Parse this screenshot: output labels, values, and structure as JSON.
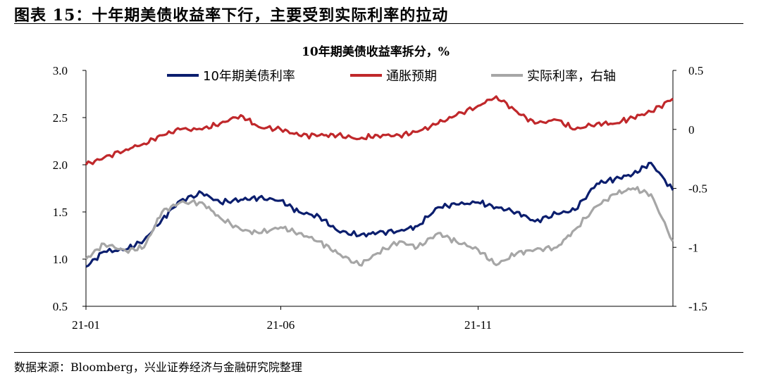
{
  "figure_title": "图表 15：十年期美债收益率下行，主要受到实际利率的拉动",
  "source": "数据来源：Bloomberg，兴业证券经济与金融研究院整理",
  "chart_data": {
    "type": "line",
    "title": "10年期美债收益率拆分，%",
    "x_ticks": [
      "21-01",
      "21-06",
      "21-11"
    ],
    "x_range": [
      "2021-01-01",
      "2022-04-01"
    ],
    "x_axis": {
      "tick_dates": [
        "2021-01-01",
        "2021-06-01",
        "2021-11-01"
      ]
    },
    "left_axis": {
      "ylim": [
        0.5,
        3.0
      ],
      "ticks": [
        "0.5",
        "1.0",
        "1.5",
        "2.0",
        "2.5",
        "3.0"
      ]
    },
    "right_axis": {
      "ylim": [
        -1.5,
        0.5
      ],
      "ticks": [
        "-1.5",
        "-1",
        "-0.5",
        "0",
        "0.5"
      ]
    },
    "grid": false,
    "legend_position": "top",
    "series": [
      {
        "name": "10年期美债利率",
        "axis": "left",
        "color": "#0b1e6e",
        "x": [
          "2021-01-01",
          "2021-01-15",
          "2021-02-01",
          "2021-02-15",
          "2021-03-01",
          "2021-03-15",
          "2021-04-01",
          "2021-04-15",
          "2021-05-01",
          "2021-05-15",
          "2021-06-01",
          "2021-06-15",
          "2021-07-01",
          "2021-07-15",
          "2021-08-01",
          "2021-08-15",
          "2021-09-01",
          "2021-09-15",
          "2021-10-01",
          "2021-10-15",
          "2021-11-01",
          "2021-11-15",
          "2021-12-01",
          "2021-12-15",
          "2022-01-01",
          "2022-01-15",
          "2022-02-01",
          "2022-02-15",
          "2022-03-01",
          "2022-03-15",
          "2022-04-01"
        ],
        "values": [
          0.92,
          1.08,
          1.1,
          1.2,
          1.42,
          1.62,
          1.7,
          1.6,
          1.63,
          1.65,
          1.62,
          1.5,
          1.45,
          1.3,
          1.25,
          1.28,
          1.3,
          1.35,
          1.55,
          1.58,
          1.6,
          1.55,
          1.5,
          1.4,
          1.48,
          1.52,
          1.8,
          1.85,
          1.9,
          2.02,
          1.73
        ]
      },
      {
        "name": "通胀预期",
        "axis": "right",
        "color": "#c0282b",
        "x": [
          "2021-01-01",
          "2021-01-15",
          "2021-02-01",
          "2021-02-15",
          "2021-03-01",
          "2021-03-15",
          "2021-04-01",
          "2021-04-15",
          "2021-05-01",
          "2021-05-15",
          "2021-06-01",
          "2021-06-15",
          "2021-07-01",
          "2021-07-15",
          "2021-08-01",
          "2021-08-15",
          "2021-09-01",
          "2021-09-15",
          "2021-10-01",
          "2021-10-15",
          "2021-11-01",
          "2021-11-15",
          "2021-12-01",
          "2021-12-15",
          "2022-01-01",
          "2022-01-15",
          "2022-02-01",
          "2022-02-15",
          "2022-03-01",
          "2022-03-15",
          "2022-04-01"
        ],
        "values": [
          -0.3,
          -0.24,
          -0.17,
          -0.12,
          -0.05,
          0.0,
          0.0,
          0.05,
          0.12,
          0.02,
          0.0,
          -0.05,
          -0.05,
          -0.05,
          -0.08,
          -0.05,
          -0.05,
          -0.02,
          0.05,
          0.12,
          0.2,
          0.28,
          0.15,
          0.05,
          0.08,
          0.0,
          0.05,
          0.05,
          0.1,
          0.15,
          0.26
        ]
      },
      {
        "name": "实际利率，右轴",
        "axis": "right",
        "color": "#a6a6a6",
        "x": [
          "2021-01-01",
          "2021-01-15",
          "2021-02-01",
          "2021-02-15",
          "2021-03-01",
          "2021-03-15",
          "2021-04-01",
          "2021-04-15",
          "2021-05-01",
          "2021-05-15",
          "2021-06-01",
          "2021-06-15",
          "2021-07-01",
          "2021-07-15",
          "2021-08-01",
          "2021-08-15",
          "2021-09-01",
          "2021-09-15",
          "2021-10-01",
          "2021-10-15",
          "2021-11-01",
          "2021-11-15",
          "2021-12-01",
          "2021-12-15",
          "2022-01-01",
          "2022-01-15",
          "2022-02-01",
          "2022-02-15",
          "2022-03-01",
          "2022-03-15",
          "2022-04-01"
        ],
        "values": [
          -1.1,
          -0.97,
          -1.03,
          -1.0,
          -0.7,
          -0.62,
          -0.62,
          -0.75,
          -0.85,
          -0.88,
          -0.83,
          -0.88,
          -0.95,
          -1.05,
          -1.15,
          -1.05,
          -0.95,
          -1.0,
          -0.88,
          -0.95,
          -1.02,
          -1.15,
          -1.05,
          -1.02,
          -1.0,
          -0.85,
          -0.65,
          -0.55,
          -0.5,
          -0.55,
          -0.95
        ]
      }
    ]
  }
}
